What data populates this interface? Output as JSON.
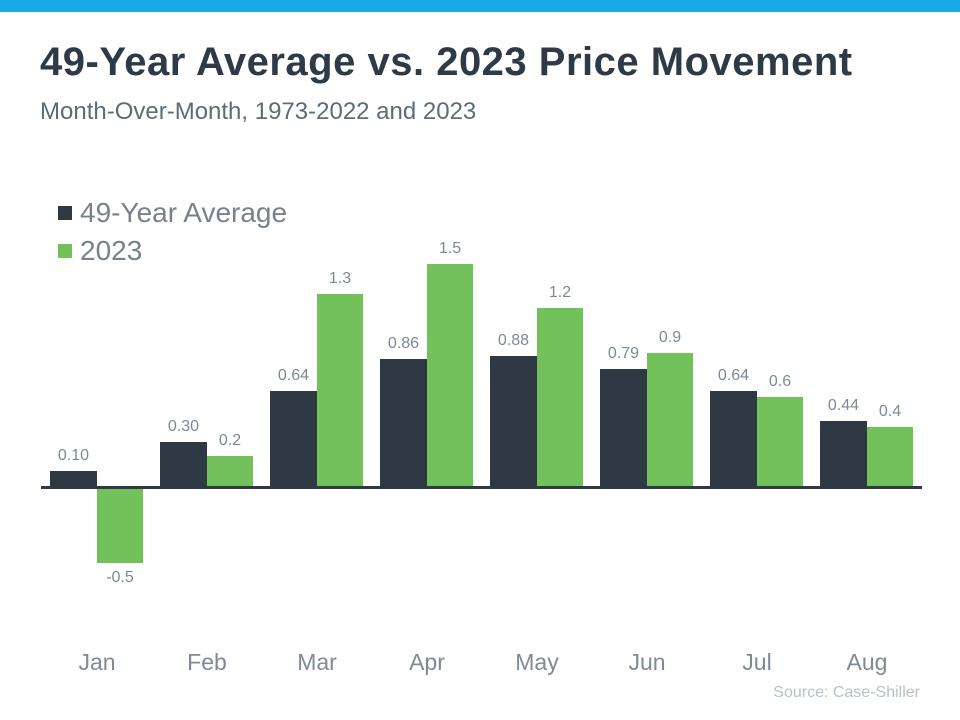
{
  "topbar": {
    "color": "#18a9e9"
  },
  "header": {
    "title": "49-Year Average vs. 2023 Price Movement",
    "subtitle": "Month-Over-Month, 1973-2022 and 2023"
  },
  "source": "Source: Case-Shiller",
  "colors": {
    "series_dark": "#2f3944",
    "series_green": "#72c15b",
    "axis": "#2f3944",
    "accent_topbar": "#18a9e9"
  },
  "chart_data": {
    "type": "bar",
    "categories": [
      "Jan",
      "Feb",
      "Mar",
      "Apr",
      "May",
      "Jun",
      "Jul",
      "Aug"
    ],
    "series": [
      {
        "name": "49-Year Average",
        "color": "#2f3944",
        "values": [
          0.1,
          0.3,
          0.64,
          0.86,
          0.88,
          0.79,
          0.64,
          0.44
        ],
        "labels": [
          "0.10",
          "0.30",
          "0.64",
          "0.86",
          "0.88",
          "0.79",
          "0.64",
          "0.44"
        ]
      },
      {
        "name": "2023",
        "color": "#72c15b",
        "values": [
          -0.5,
          0.2,
          1.3,
          1.5,
          1.2,
          0.9,
          0.6,
          0.4
        ],
        "labels": [
          "-0.5",
          "0.2",
          "1.3",
          "1.5",
          "1.2",
          "0.9",
          "0.6",
          "0.4"
        ]
      }
    ],
    "title": "49-Year Average vs. 2023 Price Movement",
    "xlabel": "",
    "ylabel": "",
    "ylim": [
      -0.75,
      1.65
    ],
    "grid": false,
    "legend_position": "top-left",
    "value_labels": true,
    "baseline": 0
  }
}
